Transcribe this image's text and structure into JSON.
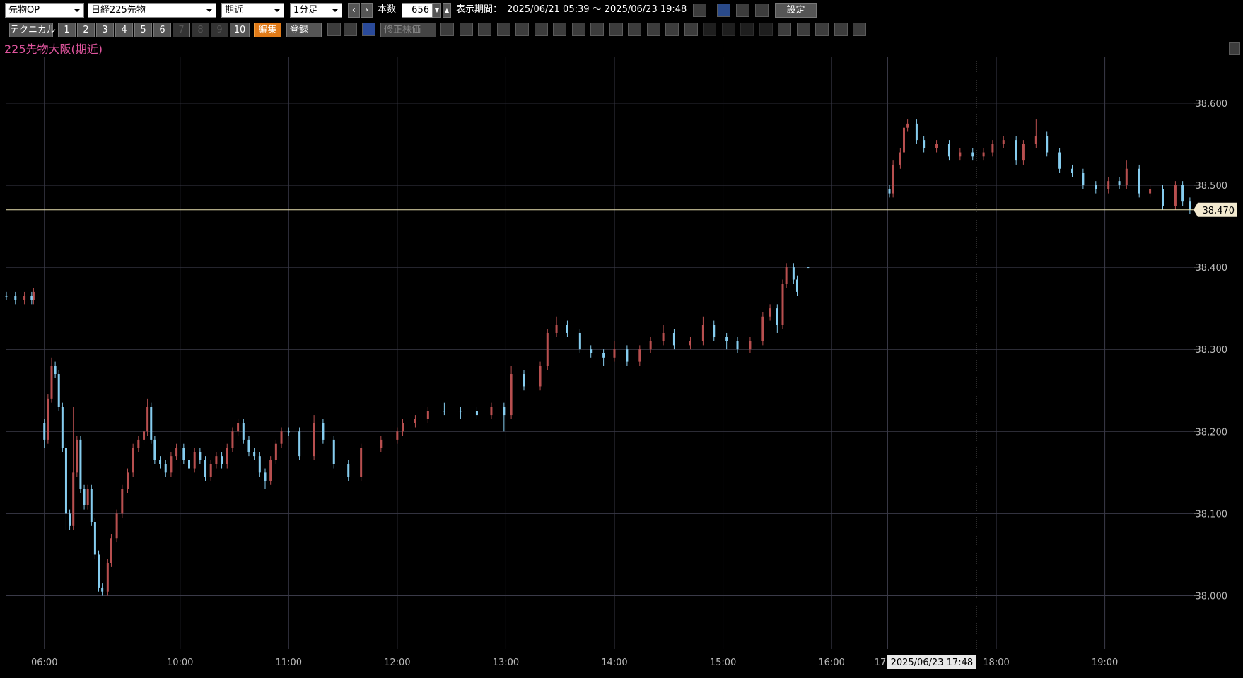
{
  "toolbar": {
    "product": "先物OP",
    "symbol": "日経225先物",
    "contract": "期近",
    "interval": "1分足",
    "bar_count_label": "本数",
    "bar_count": "656",
    "period_label": "表示期間：",
    "period": "2025/06/21 05:39 ～ 2025/06/23 19:48",
    "settings": "設定",
    "technical": "テクニカル",
    "number_buttons": [
      "1",
      "2",
      "3",
      "4",
      "5",
      "6",
      "7",
      "8",
      "9",
      "10"
    ],
    "edit": "編集",
    "register": "登録",
    "adjusted_price": "修正株価"
  },
  "chart_data": {
    "type": "candlestick",
    "title": "225先物大阪(期近)",
    "up_color": "#b84f4f",
    "down_color": "#86cdef",
    "grid": true,
    "xlim": [
      0,
      656
    ],
    "ylim": [
      37935,
      38655
    ],
    "xticks": [
      {
        "value": 21,
        "label": "06:00"
      },
      {
        "value": 96,
        "label": "10:00"
      },
      {
        "value": 156,
        "label": "11:00"
      },
      {
        "value": 216,
        "label": "12:00"
      },
      {
        "value": 276,
        "label": "13:00"
      },
      {
        "value": 336,
        "label": "14:00"
      },
      {
        "value": 396,
        "label": "15:00"
      },
      {
        "value": 456,
        "label": "16:00"
      },
      {
        "value": 487,
        "label": "17:00"
      },
      {
        "value": 547,
        "label": "18:00"
      },
      {
        "value": 607,
        "label": "19:00"
      }
    ],
    "yticks": [
      {
        "value": 38000,
        "label": "38,000"
      },
      {
        "value": 38100,
        "label": "38,100"
      },
      {
        "value": 38200,
        "label": "38,200"
      },
      {
        "value": 38300,
        "label": "38,300"
      },
      {
        "value": 38400,
        "label": "38,400"
      },
      {
        "value": 38500,
        "label": "38,500"
      },
      {
        "value": 38600,
        "label": "38,600"
      }
    ],
    "last_price": {
      "value": 38470,
      "label": "38,470"
    },
    "crosshair": {
      "x": 536,
      "label": "2025/06/23 17:48"
    },
    "x": [
      0,
      5,
      10,
      14,
      15,
      21,
      23,
      25,
      27,
      29,
      31,
      33,
      35,
      37,
      39,
      41,
      43,
      45,
      47,
      49,
      51,
      53,
      56,
      58,
      61,
      64,
      67,
      70,
      73,
      76,
      78,
      80,
      82,
      85,
      88,
      91,
      94,
      98,
      101,
      104,
      107,
      110,
      113,
      116,
      119,
      122,
      125,
      128,
      131,
      134,
      137,
      140,
      143,
      146,
      149,
      152,
      156,
      162,
      170,
      175,
      181,
      189,
      196,
      207,
      216,
      219,
      226,
      233,
      242,
      251,
      260,
      268,
      275,
      279,
      286,
      295,
      299,
      304,
      310,
      317,
      323,
      330,
      336,
      343,
      350,
      356,
      363,
      369,
      378,
      385,
      391,
      398,
      404,
      411,
      418,
      422,
      426,
      429,
      431,
      435,
      437,
      443,
      488,
      490,
      494,
      496,
      498,
      503,
      507,
      514,
      521,
      527,
      534,
      540,
      545,
      551,
      558,
      562,
      569,
      575,
      582,
      589,
      595,
      602,
      609,
      615,
      619,
      626,
      632,
      639,
      646,
      650,
      654
    ],
    "open": [
      38365,
      38365,
      38360,
      38365,
      38360,
      38210,
      38190,
      38240,
      38280,
      38270,
      38230,
      38180,
      38100,
      38085,
      38150,
      38190,
      38130,
      38110,
      38130,
      38090,
      38050,
      38010,
      38005,
      38040,
      38070,
      38100,
      38130,
      38150,
      38180,
      38190,
      38200,
      38230,
      38190,
      38165,
      38160,
      38150,
      38170,
      38180,
      38165,
      38155,
      38175,
      38165,
      38145,
      38160,
      38170,
      38160,
      38180,
      38200,
      38210,
      38190,
      38175,
      38170,
      38150,
      38140,
      38165,
      38185,
      38200,
      38200,
      38170,
      38210,
      38190,
      38160,
      38145,
      38180,
      38190,
      38200,
      38210,
      38215,
      38225,
      38225,
      38225,
      38220,
      38230,
      38220,
      38270,
      38255,
      38280,
      38320,
      38330,
      38320,
      38300,
      38295,
      38290,
      38300,
      38285,
      38300,
      38310,
      38320,
      38305,
      38310,
      38330,
      38315,
      38310,
      38300,
      38310,
      38340,
      38350,
      38330,
      38380,
      38400,
      38385,
      38400,
      38495,
      38490,
      38525,
      38540,
      38570,
      38575,
      38555,
      38545,
      38550,
      38535,
      38540,
      38535,
      38540,
      38550,
      38555,
      38530,
      38550,
      38560,
      38540,
      38520,
      38515,
      38500,
      38495,
      38505,
      38500,
      38520,
      38490,
      38495,
      38475,
      38500,
      38480
    ],
    "high": [
      38370,
      38370,
      38370,
      38370,
      38375,
      38215,
      38245,
      38290,
      38285,
      38275,
      38235,
      38185,
      38105,
      38230,
      38195,
      38195,
      38135,
      38135,
      38135,
      38095,
      38055,
      38015,
      38045,
      38075,
      38105,
      38135,
      38155,
      38185,
      38195,
      38205,
      38240,
      38235,
      38195,
      38170,
      38165,
      38175,
      38185,
      38185,
      38170,
      38180,
      38180,
      38170,
      38165,
      38175,
      38175,
      38185,
      38205,
      38215,
      38215,
      38195,
      38180,
      38175,
      38155,
      38170,
      38190,
      38205,
      38205,
      38205,
      38220,
      38215,
      38195,
      38165,
      38185,
      38195,
      38205,
      38215,
      38220,
      38230,
      38235,
      38230,
      38230,
      38235,
      38235,
      38280,
      38275,
      38285,
      38325,
      38340,
      38335,
      38325,
      38305,
      38300,
      38310,
      38305,
      38305,
      38315,
      38330,
      38325,
      38315,
      38340,
      38335,
      38320,
      38315,
      38315,
      38345,
      38355,
      38355,
      38385,
      38405,
      38405,
      38390,
      38400,
      38500,
      38530,
      38545,
      38575,
      38580,
      38580,
      38560,
      38555,
      38555,
      38545,
      38545,
      38545,
      38555,
      38560,
      38560,
      38555,
      38580,
      38565,
      38545,
      38525,
      38520,
      38505,
      38510,
      38510,
      38530,
      38525,
      38500,
      38500,
      38505,
      38505,
      38485
    ],
    "low": [
      38360,
      38355,
      38355,
      38355,
      38355,
      38180,
      38185,
      38235,
      38265,
      38225,
      38175,
      38080,
      38080,
      38080,
      38145,
      38125,
      38105,
      38105,
      38085,
      38045,
      38005,
      38000,
      38000,
      38035,
      38065,
      38095,
      38125,
      38145,
      38175,
      38185,
      38195,
      38185,
      38160,
      38155,
      38145,
      38145,
      38165,
      38160,
      38150,
      38150,
      38160,
      38140,
      38140,
      38155,
      38155,
      38155,
      38175,
      38195,
      38185,
      38170,
      38165,
      38145,
      38130,
      38135,
      38160,
      38180,
      38195,
      38165,
      38165,
      38185,
      38155,
      38140,
      38140,
      38175,
      38185,
      38195,
      38205,
      38210,
      38220,
      38215,
      38215,
      38215,
      38200,
      38215,
      38250,
      38250,
      38275,
      38315,
      38315,
      38295,
      38290,
      38280,
      38285,
      38280,
      38280,
      38295,
      38305,
      38300,
      38300,
      38305,
      38310,
      38300,
      38295,
      38295,
      38305,
      38335,
      38320,
      38325,
      38375,
      38380,
      38365,
      38400,
      38485,
      38485,
      38520,
      38535,
      38565,
      38550,
      38540,
      38540,
      38530,
      38530,
      38530,
      38530,
      38535,
      38545,
      38525,
      38525,
      38545,
      38535,
      38515,
      38510,
      38495,
      38490,
      38490,
      38495,
      38495,
      38485,
      38485,
      38470,
      38470,
      38475,
      38465
    ],
    "close": [
      38365,
      38360,
      38365,
      38360,
      38370,
      38190,
      38240,
      38280,
      38270,
      38230,
      38180,
      38100,
      38085,
      38150,
      38190,
      38130,
      38110,
      38130,
      38090,
      38050,
      38010,
      38005,
      38040,
      38070,
      38100,
      38130,
      38150,
      38180,
      38190,
      38200,
      38230,
      38190,
      38165,
      38160,
      38150,
      38170,
      38180,
      38165,
      38155,
      38175,
      38165,
      38145,
      38160,
      38170,
      38160,
      38180,
      38200,
      38210,
      38190,
      38175,
      38170,
      38150,
      38140,
      38165,
      38185,
      38200,
      38200,
      38170,
      38210,
      38190,
      38160,
      38145,
      38180,
      38190,
      38200,
      38210,
      38215,
      38225,
      38225,
      38225,
      38220,
      38230,
      38220,
      38270,
      38255,
      38280,
      38320,
      38330,
      38320,
      38300,
      38295,
      38290,
      38300,
      38285,
      38300,
      38310,
      38320,
      38305,
      38310,
      38330,
      38315,
      38310,
      38300,
      38310,
      38340,
      38350,
      38330,
      38380,
      38400,
      38385,
      38370,
      38400,
      38490,
      38525,
      38540,
      38570,
      38575,
      38555,
      38545,
      38550,
      38535,
      38540,
      38535,
      38540,
      38550,
      38555,
      38530,
      38550,
      38560,
      38540,
      38520,
      38515,
      38500,
      38495,
      38505,
      38500,
      38520,
      38490,
      38495,
      38475,
      38500,
      38480,
      38470
    ]
  }
}
